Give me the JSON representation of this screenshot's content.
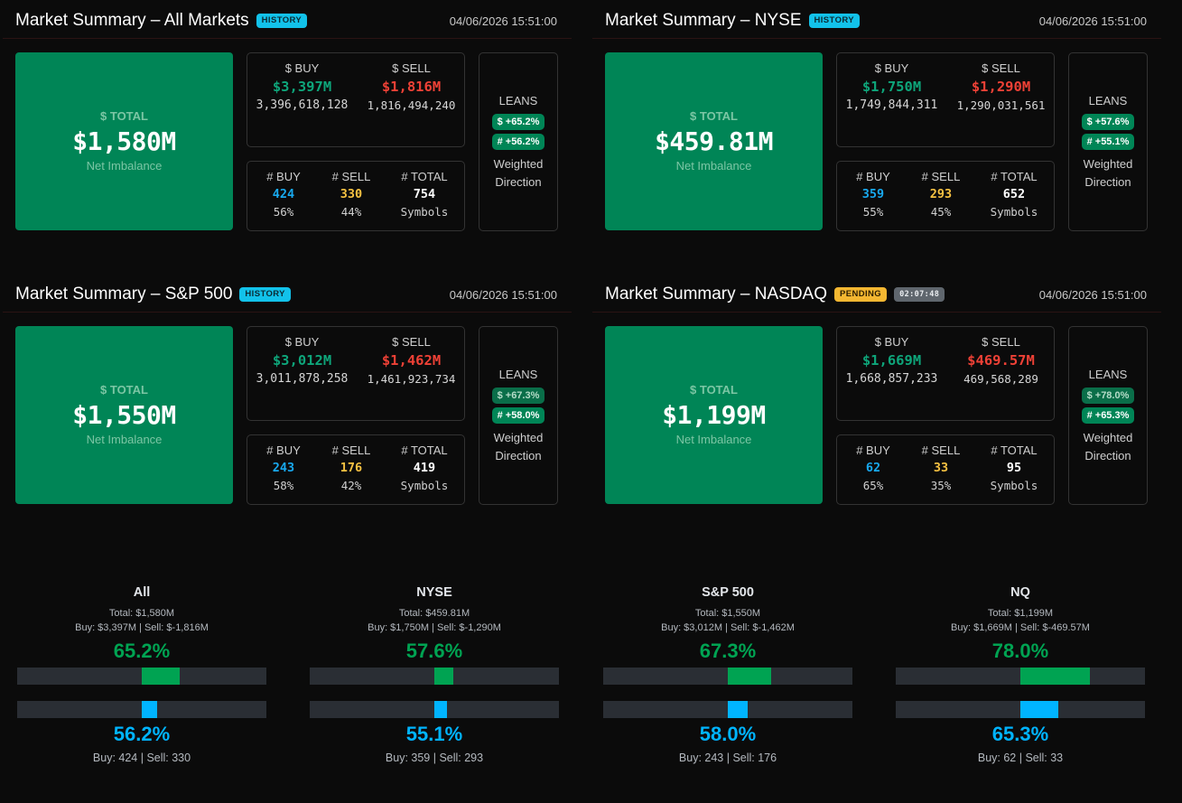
{
  "colors": {
    "background": "#0b0b0b",
    "total_box": "#008556",
    "buy_dollar": "#0ea57a",
    "sell_dollar": "#ef4136",
    "buy_count": "#18a9ef",
    "sell_count": "#f7c242",
    "gauge_green": "#00a352",
    "gauge_blue": "#00b4ff",
    "history_badge": "#12c2ea",
    "pending_badge": "#f4b731"
  },
  "labels": {
    "total_label": "$ TOTAL",
    "net_imbalance": "Net Imbalance",
    "buy_dollar": "$ BUY",
    "sell_dollar": "$ SELL",
    "buy_count": "# BUY",
    "sell_count": "# SELL",
    "total_count": "# TOTAL",
    "symbols": "Symbols",
    "leans": "LEANS",
    "weighted": "Weighted",
    "direction": "Direction"
  },
  "panels": [
    {
      "title": "Market Summary – All Markets",
      "badge": "HISTORY",
      "timestamp": "04/06/2026 15:51:00",
      "total": "$1,580M",
      "buy_dollar": "$3,397M",
      "buy_dollar_raw": "3,396,618,128",
      "sell_dollar": "$1,816M",
      "sell_dollar_raw": "1,816,494,240",
      "buy_count": "424",
      "buy_count_pct": "56%",
      "sell_count": "330",
      "sell_count_pct": "44%",
      "total_count": "754",
      "lean_dollar": "$ +65.2%",
      "lean_count": "# +56.2%"
    },
    {
      "title": "Market Summary – NYSE",
      "badge": "HISTORY",
      "timestamp": "04/06/2026 15:51:00",
      "total": "$459.81M",
      "buy_dollar": "$1,750M",
      "buy_dollar_raw": "1,749,844,311",
      "sell_dollar": "$1,290M",
      "sell_dollar_raw": "1,290,031,561",
      "buy_count": "359",
      "buy_count_pct": "55%",
      "sell_count": "293",
      "sell_count_pct": "45%",
      "total_count": "652",
      "lean_dollar": "$ +57.6%",
      "lean_count": "# +55.1%"
    },
    {
      "title": "Market Summary – S&P 500",
      "badge": "HISTORY",
      "timestamp": "04/06/2026 15:51:00",
      "total": "$1,550M",
      "buy_dollar": "$3,012M",
      "buy_dollar_raw": "3,011,878,258",
      "sell_dollar": "$1,462M",
      "sell_dollar_raw": "1,461,923,734",
      "buy_count": "243",
      "buy_count_pct": "58%",
      "sell_count": "176",
      "sell_count_pct": "42%",
      "total_count": "419",
      "lean_dollar": "$ +67.3%",
      "lean_count": "# +58.0%"
    },
    {
      "title": "Market Summary – NASDAQ",
      "badge": "PENDING",
      "timer": "02:07:48",
      "timestamp": "04/06/2026 15:51:00",
      "total": "$1,199M",
      "buy_dollar": "$1,669M",
      "buy_dollar_raw": "1,668,857,233",
      "sell_dollar": "$469.57M",
      "sell_dollar_raw": "469,568,289",
      "buy_count": "62",
      "buy_count_pct": "65%",
      "sell_count": "33",
      "sell_count_pct": "35%",
      "total_count": "95",
      "lean_dollar": "$ +78.0%",
      "lean_count": "# +65.3%"
    }
  ],
  "gauges": [
    {
      "title": "All",
      "total_line": "Total: $1,580M",
      "buy_sell_line": "Buy: $3,397M | Sell: $-1,816M",
      "dollar_pct_label": "65.2%",
      "dollar_pct": 65.2,
      "count_pct_label": "56.2%",
      "count_pct": 56.2,
      "count_line": "Buy: 424 | Sell: 330"
    },
    {
      "title": "NYSE",
      "total_line": "Total: $459.81M",
      "buy_sell_line": "Buy: $1,750M | Sell: $-1,290M",
      "dollar_pct_label": "57.6%",
      "dollar_pct": 57.6,
      "count_pct_label": "55.1%",
      "count_pct": 55.1,
      "count_line": "Buy: 359 | Sell: 293"
    },
    {
      "title": "S&P 500",
      "total_line": "Total: $1,550M",
      "buy_sell_line": "Buy: $3,012M | Sell: $-1,462M",
      "dollar_pct_label": "67.3%",
      "dollar_pct": 67.3,
      "count_pct_label": "58.0%",
      "count_pct": 58.0,
      "count_line": "Buy: 243 | Sell: 176"
    },
    {
      "title": "NQ",
      "total_line": "Total: $1,199M",
      "buy_sell_line": "Buy: $1,669M | Sell: $-469.57M",
      "dollar_pct_label": "78.0%",
      "dollar_pct": 78.0,
      "count_pct_label": "65.3%",
      "count_pct": 65.3,
      "count_line": "Buy: 62 | Sell: 33"
    }
  ]
}
